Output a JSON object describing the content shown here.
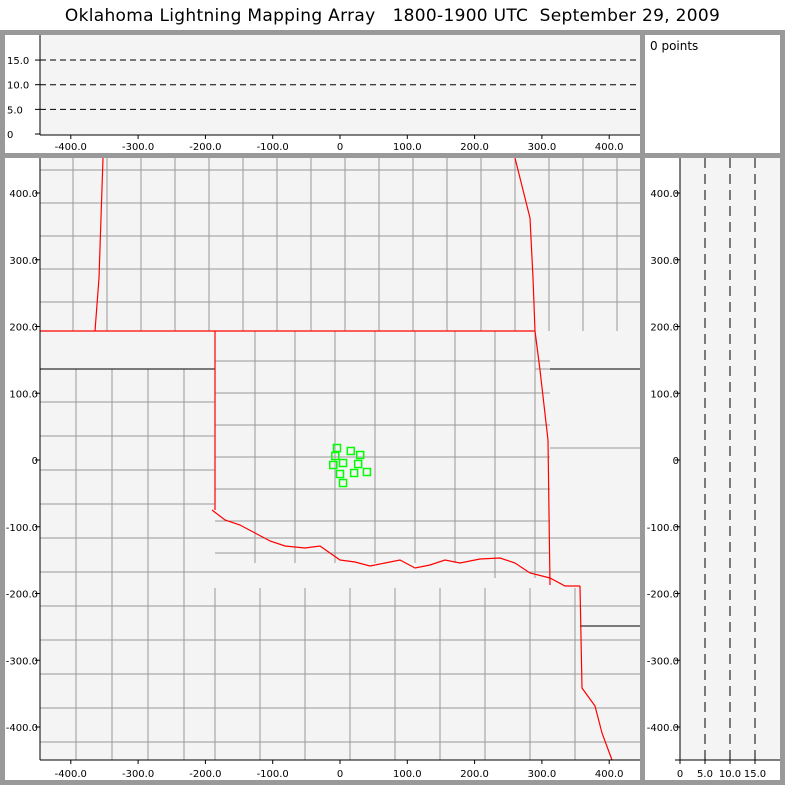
{
  "title": "Oklahoma Lightning Mapping Array   1800-1900 UTC  September 29, 2009",
  "info": {
    "points_label": "0 points"
  },
  "top_panel": {
    "y_ticks": [
      "0",
      "5.0",
      "10.0",
      "15.0"
    ],
    "x_ticks": [
      "-400.0",
      "-300.0",
      "-200.0",
      "-100.0",
      "0",
      "100.0",
      "200.0",
      "300.0",
      "400.0"
    ],
    "dashed_levels": [
      5,
      10,
      15
    ]
  },
  "map_panel": {
    "x_ticks": [
      "-400.0",
      "-300.0",
      "-200.0",
      "-100.0",
      "0",
      "100.0",
      "200.0",
      "300.0",
      "400.0"
    ],
    "y_ticks": [
      "400.0",
      "300.0",
      "200.0",
      "100.0",
      "0",
      "-100.0",
      "-200.0",
      "-300.0",
      "-400.0"
    ],
    "state_border_color": "#ff0000",
    "county_border_color": "#999999",
    "station_color": "#00ff00",
    "stations_km": [
      [
        -4.5,
        18
      ],
      [
        16,
        13.5
      ],
      [
        30,
        7.5
      ],
      [
        -7,
        6
      ],
      [
        4.5,
        -4.5
      ],
      [
        -10,
        -7.5
      ],
      [
        27,
        -6
      ],
      [
        0,
        -21
      ],
      [
        21,
        -19.5
      ],
      [
        40,
        -18
      ],
      [
        4.5,
        -34.5
      ]
    ]
  },
  "side_panel": {
    "x_ticks": [
      "0",
      "5.0",
      "10.0",
      "15.0"
    ],
    "y_ticks": [
      "400.0",
      "300.0",
      "200.0",
      "100.0",
      "0",
      "-100.0",
      "-200.0",
      "-300.0",
      "-400.0"
    ],
    "dashed_levels": [
      5,
      10,
      15
    ]
  },
  "colors": {
    "background": "#999999",
    "plot_bg": "#f4f4f4"
  }
}
